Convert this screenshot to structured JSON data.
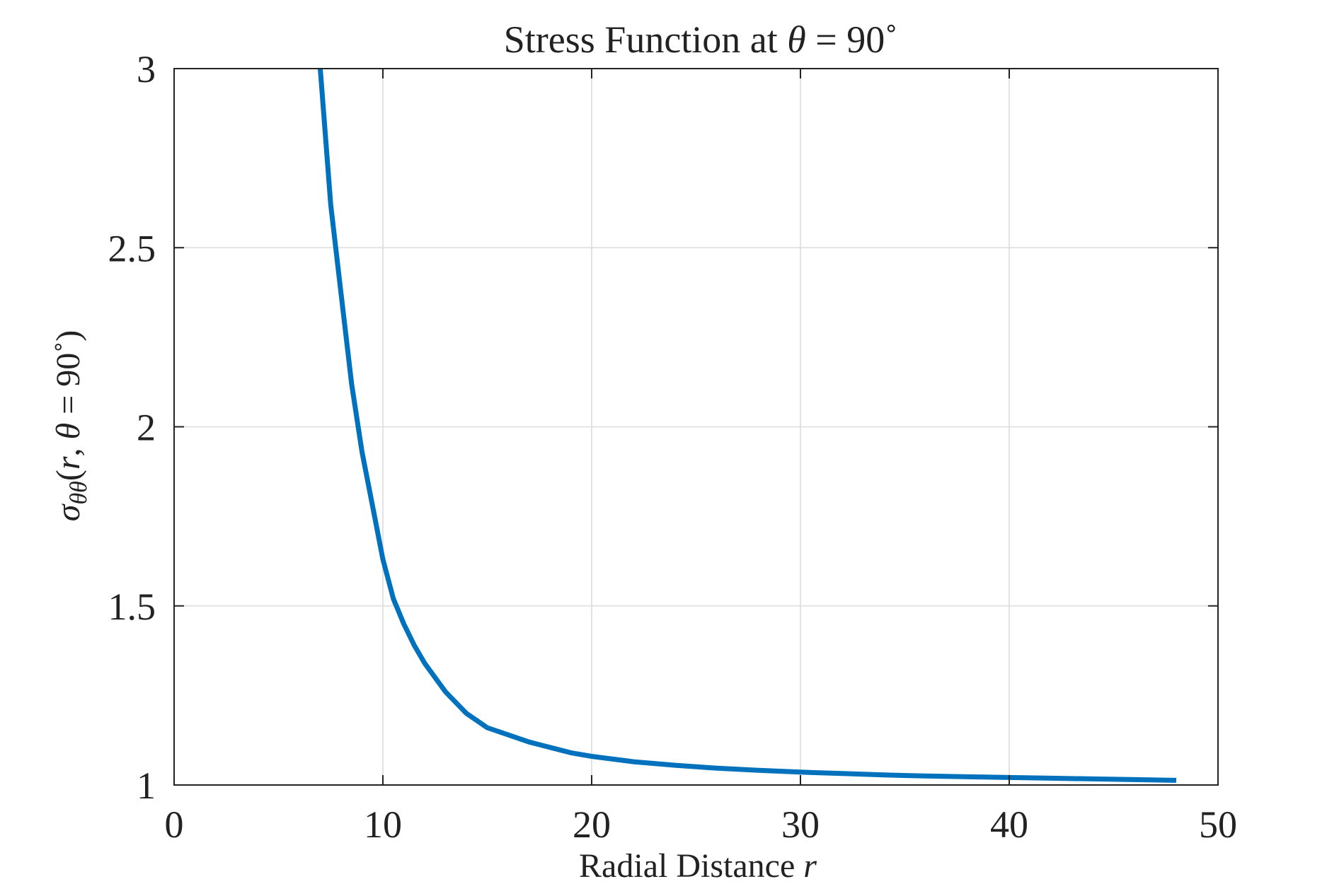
{
  "chart_data": {
    "type": "line",
    "title": {
      "prefix": "Stress Function at ",
      "symbol": "θ",
      "suffix": " = 90˚"
    },
    "xlabel": {
      "text": "Radial Distance ",
      "symbol": "r"
    },
    "ylabel": {
      "sigma": "σ",
      "subscript": "θθ",
      "open": "(",
      "r": "r",
      "comma": ", ",
      "theta": "θ",
      "rest": " = 90˚)"
    },
    "xlim": [
      0,
      50
    ],
    "ylim": [
      1,
      3
    ],
    "xticks": [
      0,
      10,
      20,
      30,
      40,
      50
    ],
    "yticks": [
      1,
      1.5,
      2,
      2.5,
      3
    ],
    "xtick_labels": [
      "0",
      "10",
      "20",
      "30",
      "40",
      "50"
    ],
    "ytick_labels": [
      "1",
      "1.5",
      "2",
      "2.5",
      "3"
    ],
    "grid": true,
    "colors": {
      "series": "#0072bd"
    },
    "series": [
      {
        "x": [
          7,
          7.5,
          8,
          8.5,
          9,
          9.5,
          10,
          10.5,
          11,
          11.5,
          12,
          13,
          14,
          15,
          16,
          17,
          18,
          19,
          20,
          22,
          24,
          26,
          28,
          30,
          32,
          34,
          36,
          38,
          40,
          42,
          44,
          46,
          48
        ],
        "y": [
          3.0,
          2.62,
          2.37,
          2.12,
          1.93,
          1.78,
          1.63,
          1.52,
          1.45,
          1.39,
          1.34,
          1.26,
          1.2,
          1.16,
          1.14,
          1.12,
          1.105,
          1.09,
          1.08,
          1.065,
          1.055,
          1.047,
          1.041,
          1.036,
          1.032,
          1.028,
          1.025,
          1.023,
          1.021,
          1.019,
          1.017,
          1.015,
          1.013
        ]
      }
    ]
  }
}
